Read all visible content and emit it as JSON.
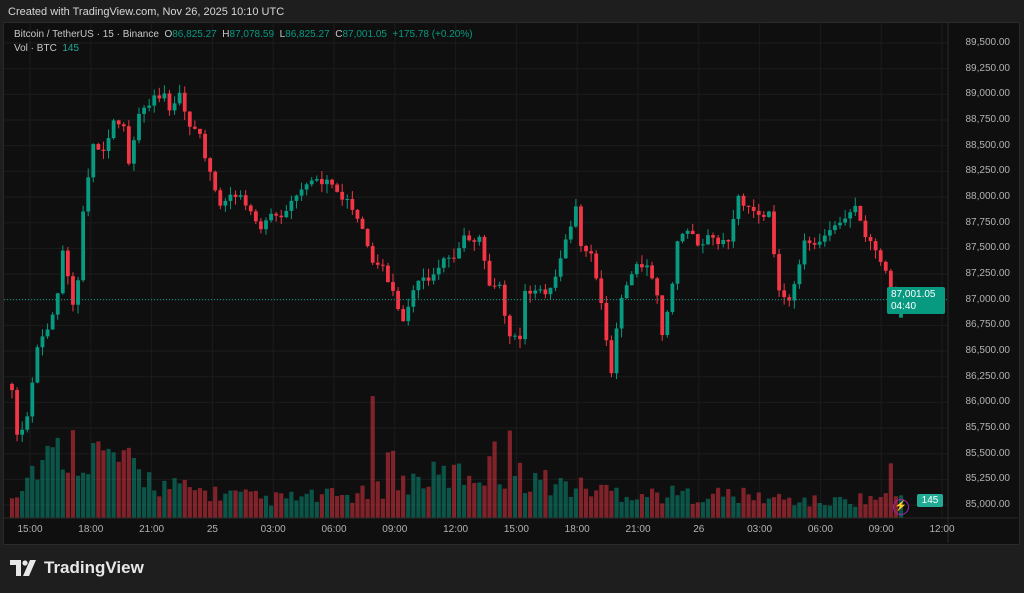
{
  "header": {
    "created": "Created with TradingView.com, Nov 26, 2025 10:10 UTC"
  },
  "legend": {
    "symbol": "Bitcoin / TetherUS · 15 · Binance",
    "o_label": "O",
    "o": "86,825.27",
    "h_label": "H",
    "h": "87,078.59",
    "l_label": "L",
    "l": "86,825.27",
    "c_label": "C",
    "c": "87,001.05",
    "change": "+175.78 (+0.20%)",
    "vol_label": "Vol · BTC",
    "vol": "145"
  },
  "price_tag": {
    "price": "87,001.05",
    "countdown": "04:40"
  },
  "vol_tag": "145",
  "footer": {
    "brand": "TradingView"
  },
  "colors": {
    "up": "#089981",
    "down": "#f23645",
    "bg": "#0f0f0f",
    "grid": "#1c1c1c",
    "text": "#b2b2b2",
    "indicator": "#9c27b0"
  },
  "chart_data": {
    "type": "candlestick",
    "symbol": "BTCUSDT",
    "interval": "15",
    "ylim": [
      85000,
      89500
    ],
    "price_ticks": [
      "89,500.00",
      "89,250.00",
      "89,000.00",
      "88,750.00",
      "88,500.00",
      "88,250.00",
      "88,000.00",
      "87,750.00",
      "87,500.00",
      "87,250.00",
      "87,000.00",
      "86,750.00",
      "86,500.00",
      "86,250.00",
      "86,000.00",
      "85,750.00",
      "85,500.00",
      "85,250.00",
      "85,000.00"
    ],
    "price_tick_values": [
      89500,
      89250,
      89000,
      88750,
      88500,
      88250,
      88000,
      87750,
      87500,
      87250,
      87000,
      86750,
      86500,
      86250,
      86000,
      85750,
      85500,
      85250,
      85000
    ],
    "time_ticks": [
      "15:00",
      "18:00",
      "21:00",
      "25",
      "03:00",
      "06:00",
      "09:00",
      "12:00",
      "15:00",
      "18:00",
      "21:00",
      "26",
      "03:00",
      "06:00",
      "09:00",
      "12:00"
    ],
    "candle_count": 176,
    "close_keyframes": [
      [
        0,
        86120
      ],
      [
        1,
        85630
      ],
      [
        3,
        85830
      ],
      [
        5,
        86510
      ],
      [
        7,
        86700
      ],
      [
        9,
        87090
      ],
      [
        10,
        87480
      ],
      [
        12,
        87000
      ],
      [
        13,
        87190
      ],
      [
        14,
        87870
      ],
      [
        16,
        88460
      ],
      [
        18,
        88410
      ],
      [
        20,
        88700
      ],
      [
        22,
        88650
      ],
      [
        23,
        88360
      ],
      [
        25,
        88850
      ],
      [
        27,
        88950
      ],
      [
        28,
        89040
      ],
      [
        30,
        88950
      ],
      [
        31,
        88800
      ],
      [
        33,
        88990
      ],
      [
        35,
        88650
      ],
      [
        37,
        88560
      ],
      [
        39,
        88260
      ],
      [
        41,
        87920
      ],
      [
        43,
        88070
      ],
      [
        45,
        87970
      ],
      [
        47,
        87830
      ],
      [
        49,
        87680
      ],
      [
        51,
        87830
      ],
      [
        53,
        87830
      ],
      [
        55,
        87970
      ],
      [
        57,
        88120
      ],
      [
        59,
        88210
      ],
      [
        61,
        88120
      ],
      [
        63,
        88120
      ],
      [
        65,
        87970
      ],
      [
        67,
        87920
      ],
      [
        69,
        87730
      ],
      [
        71,
        87390
      ],
      [
        73,
        87390
      ],
      [
        75,
        87050
      ],
      [
        77,
        86750
      ],
      [
        79,
        87090
      ],
      [
        81,
        87190
      ],
      [
        83,
        87290
      ],
      [
        85,
        87440
      ],
      [
        87,
        87440
      ],
      [
        89,
        87630
      ],
      [
        90,
        87530
      ],
      [
        92,
        87580
      ],
      [
        94,
        87090
      ],
      [
        96,
        87090
      ],
      [
        98,
        86700
      ],
      [
        100,
        86660
      ],
      [
        101,
        87090
      ],
      [
        103,
        87140
      ],
      [
        105,
        87000
      ],
      [
        107,
        87190
      ],
      [
        109,
        87530
      ],
      [
        111,
        87870
      ],
      [
        112,
        87580
      ],
      [
        114,
        87480
      ],
      [
        116,
        87000
      ],
      [
        117,
        86610
      ],
      [
        118,
        86320
      ],
      [
        120,
        87000
      ],
      [
        122,
        87190
      ],
      [
        123,
        87340
      ],
      [
        125,
        87290
      ],
      [
        127,
        87090
      ],
      [
        128,
        86660
      ],
      [
        130,
        87190
      ],
      [
        131,
        87580
      ],
      [
        133,
        87730
      ],
      [
        135,
        87480
      ],
      [
        137,
        87580
      ],
      [
        139,
        87530
      ],
      [
        141,
        87580
      ],
      [
        143,
        88020
      ],
      [
        145,
        87920
      ],
      [
        147,
        87830
      ],
      [
        149,
        87830
      ],
      [
        150,
        87390
      ],
      [
        151,
        87090
      ],
      [
        153,
        86950
      ],
      [
        155,
        87290
      ],
      [
        156,
        87580
      ],
      [
        158,
        87580
      ],
      [
        160,
        87630
      ],
      [
        162,
        87780
      ],
      [
        164,
        87780
      ],
      [
        166,
        87870
      ],
      [
        168,
        87580
      ],
      [
        170,
        87480
      ],
      [
        172,
        87290
      ],
      [
        174,
        86900
      ],
      [
        175,
        87001.05
      ]
    ],
    "last_candle": {
      "open": 86825.27,
      "high": 87078.59,
      "low": 86825.27,
      "close": 87001.05
    },
    "volume_baseline": [
      [
        0,
        150
      ],
      [
        5,
        350
      ],
      [
        12,
        450
      ],
      [
        20,
        380
      ],
      [
        30,
        200
      ],
      [
        50,
        120
      ],
      [
        70,
        150
      ],
      [
        80,
        250
      ],
      [
        95,
        300
      ],
      [
        110,
        200
      ],
      [
        125,
        150
      ],
      [
        140,
        150
      ],
      [
        160,
        100
      ],
      [
        175,
        145
      ]
    ],
    "volume_spikes": [
      [
        16,
        480
      ],
      [
        71,
        780
      ],
      [
        74,
        420
      ],
      [
        75,
        430
      ],
      [
        95,
        490
      ],
      [
        98,
        560
      ],
      [
        173,
        350
      ],
      [
        175,
        145
      ]
    ]
  }
}
